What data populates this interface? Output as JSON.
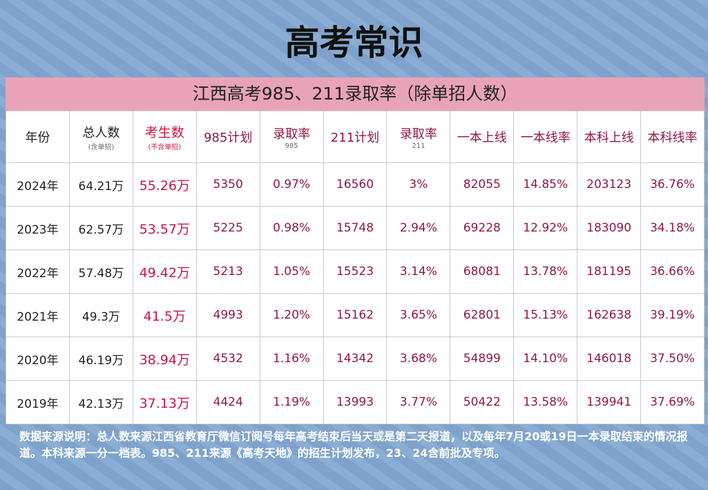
{
  "header": {
    "title": "高考常识"
  },
  "table": {
    "title": "江西高考985、211录取率（除单招人数）",
    "columns": [
      {
        "label": "年份"
      },
      {
        "label": "总人数",
        "sub": "(含单招)"
      },
      {
        "label": "考生数",
        "sub": "(不含单招)"
      },
      {
        "label": "985计划"
      },
      {
        "label": "录取率",
        "sub": "985"
      },
      {
        "label": "211计划"
      },
      {
        "label": "录取率",
        "sub": "211"
      },
      {
        "label": "一本上线"
      },
      {
        "label": "一本线率"
      },
      {
        "label": "本科上线"
      },
      {
        "label": "本科线率"
      }
    ],
    "rows": [
      [
        "2024年",
        "64.21万",
        "55.26万",
        "5350",
        "0.97%",
        "16560",
        "3%",
        "82055",
        "14.85%",
        "203123",
        "36.76%"
      ],
      [
        "2023年",
        "62.57万",
        "53.57万",
        "5225",
        "0.98%",
        "15748",
        "2.94%",
        "69228",
        "12.92%",
        "183090",
        "34.18%"
      ],
      [
        "2022年",
        "57.48万",
        "49.42万",
        "5213",
        "1.05%",
        "15523",
        "3.14%",
        "68081",
        "13.78%",
        "181195",
        "36.66%"
      ],
      [
        "2021年",
        "49.3万",
        "41.5万",
        "4993",
        "1.20%",
        "15162",
        "3.65%",
        "62801",
        "15.13%",
        "162638",
        "39.19%"
      ],
      [
        "2020年",
        "46.19万",
        "38.94万",
        "4532",
        "1.16%",
        "14342",
        "3.68%",
        "54899",
        "14.10%",
        "146018",
        "37.50%"
      ],
      [
        "2019年",
        "42.13万",
        "37.13万",
        "4424",
        "1.19%",
        "13993",
        "3.77%",
        "50422",
        "13.58%",
        "139941",
        "37.69%"
      ]
    ]
  },
  "footnote": "数据来源说明：总人数来源江西省教育厅微信订阅号每年高考结束后当天或是第二天报道，以及每年7月20或19日一本录取结束的情况报道。本科来源一分一档表。985、211来源《高考天地》的招生计划发布，23、24含前批及专项。"
}
